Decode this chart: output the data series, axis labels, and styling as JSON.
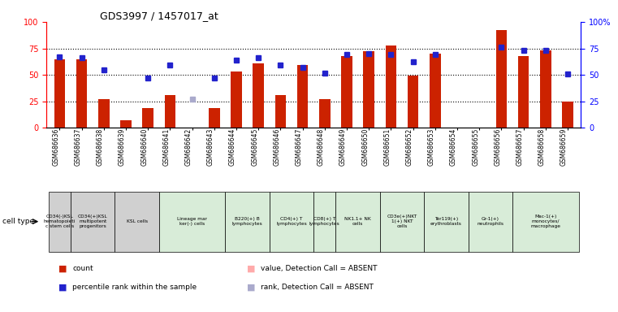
{
  "title": "GDS3997 / 1457017_at",
  "samples": [
    "GSM686636",
    "GSM686637",
    "GSM686638",
    "GSM686639",
    "GSM686640",
    "GSM686641",
    "GSM686642",
    "GSM686643",
    "GSM686644",
    "GSM686645",
    "GSM686646",
    "GSM686647",
    "GSM686648",
    "GSM686649",
    "GSM686650",
    "GSM686651",
    "GSM686652",
    "GSM686653",
    "GSM686654",
    "GSM686655",
    "GSM686656",
    "GSM686657",
    "GSM686658",
    "GSM686659"
  ],
  "count_values": [
    65,
    65,
    27,
    7,
    19,
    31,
    null,
    19,
    53,
    61,
    31,
    59,
    27,
    68,
    72,
    78,
    49,
    70,
    null,
    null,
    92,
    68,
    73,
    25
  ],
  "count_absent": [
    false,
    false,
    false,
    false,
    false,
    false,
    true,
    false,
    false,
    false,
    false,
    false,
    false,
    false,
    false,
    false,
    false,
    false,
    true,
    true,
    false,
    false,
    false,
    false
  ],
  "rank_values": [
    67,
    66,
    55,
    null,
    47,
    59,
    27,
    47,
    64,
    66,
    59,
    57,
    52,
    69,
    70,
    69,
    62,
    69,
    null,
    null,
    76,
    73,
    73,
    51
  ],
  "rank_absent": [
    false,
    false,
    false,
    false,
    false,
    false,
    true,
    false,
    false,
    false,
    false,
    false,
    false,
    false,
    false,
    false,
    false,
    false,
    true,
    true,
    false,
    false,
    false,
    false
  ],
  "ylim_left": [
    0,
    100
  ],
  "ylim_right": [
    0,
    100
  ],
  "bar_color_normal": "#cc2200",
  "bar_color_absent": "#ffaaaa",
  "rank_color_normal": "#2222cc",
  "rank_color_absent": "#aaaacc",
  "dotted_lines": [
    25,
    50,
    75
  ],
  "cell_types": [
    {
      "label": "CD34(-)KSL\nhematopoieti\nc stem cells",
      "n_samples": 1,
      "color": "#d0d0d0"
    },
    {
      "label": "CD34(+)KSL\nmultipotent\nprogenitors",
      "n_samples": 2,
      "color": "#d0d0d0"
    },
    {
      "label": "KSL cells",
      "n_samples": 2,
      "color": "#d0d0d0"
    },
    {
      "label": "Lineage mar\nker(-) cells",
      "n_samples": 3,
      "color": "#d8ecd8"
    },
    {
      "label": "B220(+) B\nlymphocytes",
      "n_samples": 2,
      "color": "#d8ecd8"
    },
    {
      "label": "CD4(+) T\nlymphocytes",
      "n_samples": 2,
      "color": "#d8ecd8"
    },
    {
      "label": "CD8(+) T\nlymphocytes",
      "n_samples": 1,
      "color": "#d8ecd8"
    },
    {
      "label": "NK1.1+ NK\ncells",
      "n_samples": 2,
      "color": "#d8ecd8"
    },
    {
      "label": "CD3e(+)NKT\n1(+) NKT\ncells",
      "n_samples": 2,
      "color": "#d8ecd8"
    },
    {
      "label": "Ter119(+)\nerythroblasts",
      "n_samples": 2,
      "color": "#d8ecd8"
    },
    {
      "label": "Gr-1(+)\nneutrophils",
      "n_samples": 2,
      "color": "#d8ecd8"
    },
    {
      "label": "Mac-1(+)\nmonocytes/\nmacrophage",
      "n_samples": 3,
      "color": "#d8ecd8"
    }
  ]
}
